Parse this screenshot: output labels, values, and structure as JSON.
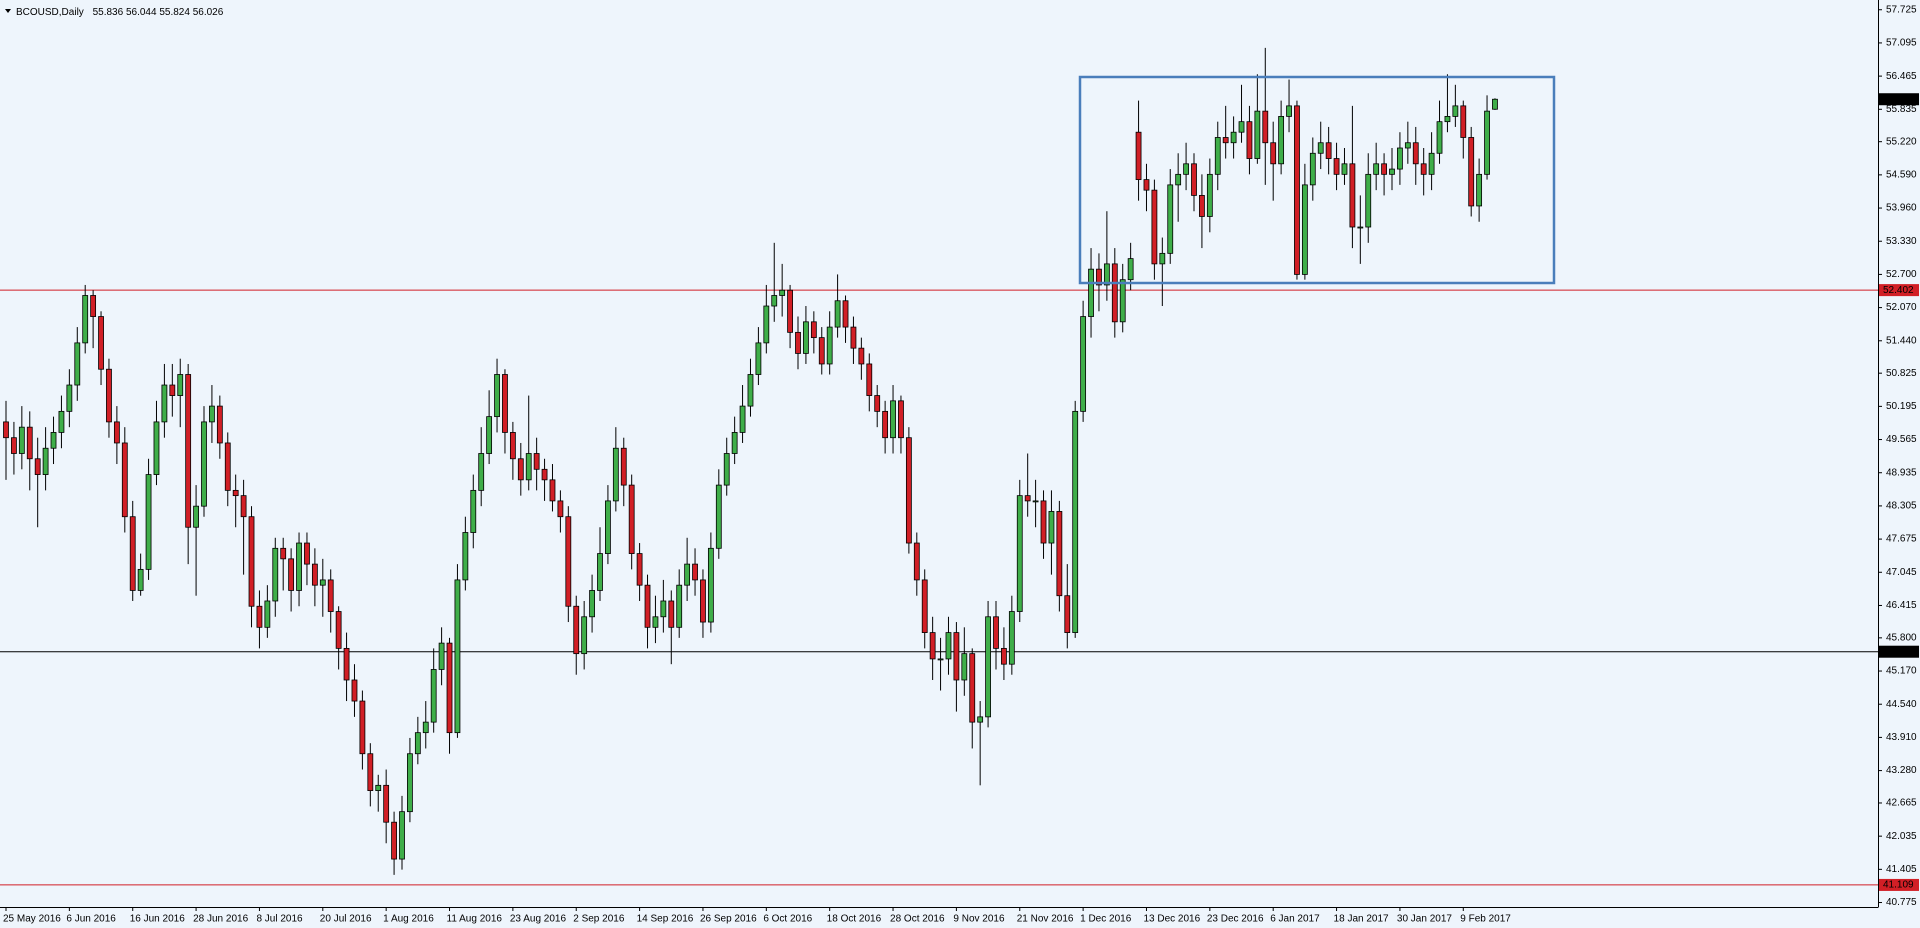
{
  "chart_data": {
    "type": "candlestick",
    "title": "BCOUSD,Daily",
    "categories": [
      "25 May 2016",
      null,
      null,
      null,
      null,
      null,
      null,
      null,
      "6 Jun 2016",
      null,
      null,
      null,
      null,
      null,
      null,
      null,
      "16 Jun 2016",
      null,
      null,
      null,
      null,
      null,
      null,
      null,
      "28 Jun 2016",
      null,
      null,
      null,
      null,
      null,
      null,
      null,
      "8 Jul 2016",
      null,
      null,
      null,
      null,
      null,
      null,
      null,
      "20 Jul 2016",
      null,
      null,
      null,
      null,
      null,
      null,
      null,
      "1 Aug 2016",
      null,
      null,
      null,
      null,
      null,
      null,
      null,
      "11 Aug 2016",
      null,
      null,
      null,
      null,
      null,
      null,
      null,
      "23 Aug 2016",
      null,
      null,
      null,
      null,
      null,
      null,
      null,
      "2 Sep 2016",
      null,
      null,
      null,
      null,
      null,
      null,
      null,
      "14 Sep 2016",
      null,
      null,
      null,
      null,
      null,
      null,
      null,
      "26 Sep 2016",
      null,
      null,
      null,
      null,
      null,
      null,
      null,
      "6 Oct 2016",
      null,
      null,
      null,
      null,
      null,
      null,
      null,
      "18 Oct 2016",
      null,
      null,
      null,
      null,
      null,
      null,
      null,
      "28 Oct 2016",
      null,
      null,
      null,
      null,
      null,
      null,
      null,
      "9 Nov 2016",
      null,
      null,
      null,
      null,
      null,
      null,
      null,
      "21 Nov 2016",
      null,
      null,
      null,
      null,
      null,
      null,
      null,
      "1 Dec 2016",
      null,
      null,
      null,
      null,
      null,
      null,
      null,
      "13 Dec 2016",
      null,
      null,
      null,
      null,
      null,
      null,
      null,
      "23 Dec 2016",
      null,
      null,
      null,
      null,
      null,
      null,
      null,
      "6 Jan 2017",
      null,
      null,
      null,
      null,
      null,
      null,
      null,
      "18 Jan 2017",
      null,
      null,
      null,
      null,
      null,
      null,
      null,
      "30 Jan 2017",
      null,
      null,
      null,
      null,
      null,
      null,
      null,
      "9 Feb 2017",
      null,
      null,
      null,
      null
    ],
    "open": [
      49.9,
      49.6,
      49.3,
      49.8,
      49.2,
      48.9,
      49.4,
      49.7,
      50.1,
      50.6,
      51.4,
      52.3,
      51.9,
      50.9,
      49.9,
      49.5,
      48.1,
      46.7,
      47.1,
      48.9,
      49.9,
      50.6,
      50.4,
      50.8,
      47.9,
      48.3,
      49.9,
      50.2,
      49.5,
      48.6,
      48.5,
      48.1,
      46.4,
      46.0,
      46.5,
      47.5,
      47.3,
      46.7,
      47.6,
      47.2,
      46.8,
      46.9,
      46.3,
      45.6,
      45.0,
      44.6,
      43.6,
      42.9,
      43.0,
      42.3,
      41.6,
      42.5,
      43.6,
      44.0,
      44.2,
      45.2,
      45.7,
      44.0,
      46.9,
      47.8,
      48.6,
      49.3,
      50.0,
      50.8,
      49.7,
      49.2,
      48.8,
      49.3,
      49.0,
      48.8,
      48.4,
      48.1,
      46.4,
      45.5,
      46.2,
      46.7,
      47.4,
      48.4,
      49.4,
      48.7,
      47.4,
      46.8,
      46.0,
      46.2,
      46.5,
      46.0,
      46.8,
      47.2,
      46.9,
      46.1,
      47.5,
      48.7,
      49.3,
      49.7,
      50.2,
      50.8,
      51.4,
      52.1,
      52.3,
      52.4,
      51.6,
      51.2,
      51.8,
      51.5,
      51.0,
      51.7,
      52.2,
      51.7,
      51.3,
      51.0,
      50.4,
      50.1,
      49.6,
      50.3,
      49.6,
      47.6,
      46.9,
      45.9,
      45.4,
      45.4,
      45.9,
      45.0,
      45.5,
      44.2,
      44.3,
      46.2,
      45.6,
      45.3,
      46.3,
      48.5,
      48.4,
      48.4,
      47.6,
      48.2,
      46.6,
      45.9,
      50.1,
      51.9,
      52.8,
      52.5,
      52.9,
      51.8,
      52.6,
      55.4,
      54.5,
      54.3,
      52.9,
      53.1,
      54.4,
      54.6,
      54.8,
      54.2,
      53.8,
      54.6,
      55.3,
      55.2,
      55.4,
      55.6,
      54.9,
      55.8,
      55.2,
      54.8,
      55.7,
      55.9,
      52.7,
      54.4,
      55.0,
      55.2,
      54.9,
      54.6,
      54.8,
      53.6,
      53.6,
      54.6,
      54.8,
      54.6,
      54.7,
      55.1,
      55.2,
      54.8,
      54.6,
      55.0,
      55.6,
      55.7,
      55.9,
      55.3,
      54.0,
      54.6,
      55.836
    ],
    "high": [
      50.3,
      49.9,
      50.2,
      50.1,
      49.6,
      49.8,
      50.0,
      50.4,
      50.9,
      51.7,
      52.5,
      52.4,
      52.0,
      51.1,
      50.2,
      49.8,
      48.4,
      47.4,
      49.2,
      50.3,
      51.0,
      51.0,
      51.1,
      51.0,
      48.7,
      50.2,
      50.6,
      50.4,
      49.7,
      48.9,
      48.8,
      48.3,
      46.7,
      46.8,
      47.7,
      47.7,
      47.5,
      47.8,
      47.8,
      47.5,
      47.3,
      47.1,
      46.4,
      45.9,
      45.3,
      44.8,
      43.8,
      43.2,
      43.3,
      42.5,
      42.8,
      43.9,
      44.3,
      44.6,
      45.6,
      46.0,
      45.8,
      47.2,
      48.1,
      48.9,
      49.8,
      50.5,
      51.1,
      50.9,
      49.9,
      49.5,
      50.4,
      49.6,
      49.2,
      49.1,
      48.6,
      48.3,
      46.6,
      46.5,
      47.0,
      47.9,
      48.7,
      49.8,
      49.6,
      48.9,
      47.6,
      47.0,
      46.6,
      46.9,
      46.7,
      47.1,
      47.7,
      47.5,
      47.1,
      47.8,
      49.0,
      49.6,
      50.0,
      50.6,
      51.1,
      51.7,
      52.5,
      53.3,
      52.9,
      52.5,
      51.9,
      52.1,
      52.0,
      51.7,
      52.0,
      52.7,
      52.3,
      51.9,
      51.5,
      51.2,
      50.6,
      50.3,
      50.6,
      50.4,
      49.8,
      47.8,
      47.1,
      46.2,
      45.8,
      46.2,
      46.1,
      46.0,
      45.6,
      44.6,
      46.5,
      46.5,
      46.0,
      46.6,
      48.8,
      49.3,
      48.8,
      48.6,
      48.6,
      48.4,
      47.2,
      50.3,
      52.2,
      53.2,
      53.1,
      53.9,
      53.2,
      52.9,
      53.3,
      56.0,
      54.8,
      54.5,
      53.4,
      54.7,
      55.0,
      55.2,
      55.0,
      54.6,
      54.9,
      55.6,
      55.9,
      55.7,
      56.3,
      55.9,
      56.5,
      57.0,
      55.6,
      56.0,
      56.4,
      56.0,
      54.8,
      55.3,
      55.6,
      55.5,
      55.2,
      55.1,
      55.9,
      54.2,
      55.0,
      55.2,
      55.0,
      55.1,
      55.4,
      55.6,
      55.5,
      55.1,
      55.4,
      56.0,
      56.5,
      56.3,
      56.0,
      55.5,
      54.9,
      56.1,
      56.044
    ],
    "low": [
      48.8,
      48.9,
      49.0,
      48.6,
      47.9,
      48.6,
      49.1,
      49.4,
      49.8,
      50.3,
      51.2,
      51.3,
      50.6,
      49.6,
      49.1,
      47.8,
      46.5,
      46.6,
      46.9,
      48.7,
      49.6,
      50.0,
      49.8,
      47.2,
      46.6,
      48.1,
      49.5,
      49.2,
      48.3,
      47.9,
      47.0,
      46.0,
      45.6,
      45.8,
      46.2,
      46.7,
      46.3,
      46.4,
      46.8,
      46.4,
      46.2,
      45.9,
      45.2,
      44.6,
      44.3,
      43.3,
      42.6,
      42.5,
      41.9,
      41.3,
      41.4,
      42.3,
      43.4,
      43.7,
      44.0,
      44.9,
      43.6,
      43.9,
      46.7,
      47.5,
      48.3,
      49.1,
      49.7,
      49.3,
      48.8,
      48.5,
      48.6,
      48.6,
      48.4,
      48.2,
      47.8,
      46.1,
      45.1,
      45.2,
      45.9,
      46.5,
      47.2,
      48.2,
      48.3,
      47.1,
      46.5,
      45.6,
      45.7,
      45.9,
      45.3,
      45.8,
      46.5,
      46.6,
      45.8,
      45.9,
      47.3,
      48.5,
      49.1,
      49.5,
      50.0,
      50.6,
      51.2,
      51.8,
      51.9,
      51.3,
      50.9,
      51.0,
      51.2,
      50.8,
      50.8,
      51.5,
      51.4,
      51.0,
      50.7,
      50.1,
      49.8,
      49.3,
      49.3,
      49.3,
      47.4,
      46.6,
      45.6,
      45.0,
      44.8,
      45.1,
      44.4,
      44.7,
      43.7,
      43.0,
      44.1,
      45.2,
      45.0,
      45.1,
      46.1,
      48.1,
      47.9,
      47.3,
      47.0,
      46.3,
      45.6,
      45.8,
      49.9,
      51.5,
      52.0,
      52.2,
      51.5,
      51.6,
      52.4,
      54.1,
      53.9,
      52.6,
      52.1,
      52.9,
      53.7,
      54.3,
      53.9,
      53.2,
      53.5,
      54.3,
      54.9,
      54.9,
      55.2,
      54.6,
      54.8,
      54.4,
      54.1,
      54.6,
      55.4,
      52.6,
      52.6,
      54.1,
      54.7,
      54.6,
      54.3,
      54.4,
      53.2,
      52.9,
      53.3,
      54.3,
      54.2,
      54.3,
      54.4,
      54.8,
      54.4,
      54.2,
      54.3,
      54.8,
      55.4,
      55.5,
      54.9,
      53.8,
      53.7,
      54.5,
      55.824
    ],
    "close": [
      49.6,
      49.3,
      49.8,
      49.2,
      48.9,
      49.4,
      49.7,
      50.1,
      50.6,
      51.4,
      52.3,
      51.9,
      50.9,
      49.9,
      49.5,
      48.1,
      46.7,
      47.1,
      48.9,
      49.9,
      50.6,
      50.4,
      50.8,
      47.9,
      48.3,
      49.9,
      50.2,
      49.5,
      48.6,
      48.5,
      48.1,
      46.4,
      46.0,
      46.5,
      47.5,
      47.3,
      46.7,
      47.6,
      47.2,
      46.8,
      46.9,
      46.3,
      45.6,
      45.0,
      44.6,
      43.6,
      42.9,
      43.0,
      42.3,
      41.6,
      42.5,
      43.6,
      44.0,
      44.2,
      45.2,
      45.7,
      44.0,
      46.9,
      47.8,
      48.6,
      49.3,
      50.0,
      50.8,
      49.7,
      49.2,
      48.8,
      49.3,
      49.0,
      48.8,
      48.4,
      48.1,
      46.4,
      45.5,
      46.2,
      46.7,
      47.4,
      48.4,
      49.4,
      48.7,
      47.4,
      46.8,
      46.0,
      46.2,
      46.5,
      46.0,
      46.8,
      47.2,
      46.9,
      46.1,
      47.5,
      48.7,
      49.3,
      49.7,
      50.2,
      50.8,
      51.4,
      52.1,
      52.3,
      52.4,
      51.6,
      51.2,
      51.8,
      51.5,
      51.0,
      51.7,
      52.2,
      51.7,
      51.3,
      51.0,
      50.4,
      50.1,
      49.6,
      50.3,
      49.6,
      47.6,
      46.9,
      45.9,
      45.4,
      45.4,
      45.9,
      45.0,
      45.5,
      44.2,
      44.3,
      46.2,
      45.6,
      45.3,
      46.3,
      48.5,
      48.4,
      48.4,
      47.6,
      48.2,
      46.6,
      45.9,
      50.1,
      51.9,
      52.8,
      52.5,
      52.9,
      51.8,
      52.6,
      53.0,
      54.5,
      54.3,
      52.9,
      53.1,
      54.4,
      54.6,
      54.8,
      54.2,
      53.8,
      54.6,
      55.3,
      55.2,
      55.4,
      55.6,
      54.9,
      55.8,
      55.2,
      54.8,
      55.7,
      55.9,
      52.7,
      54.4,
      55.0,
      55.2,
      54.9,
      54.6,
      54.8,
      53.6,
      53.6,
      54.6,
      54.8,
      54.6,
      54.7,
      55.1,
      55.2,
      54.8,
      54.6,
      55.0,
      55.6,
      55.7,
      55.9,
      55.3,
      54.0,
      54.6,
      55.8,
      56.026
    ],
    "up_color": "#3fae49",
    "down_color": "#d11f26",
    "ylim": [
      40.69,
      57.91
    ],
    "yticks": [
      57.725,
      57.095,
      56.465,
      55.835,
      {
        "value": 55.22,
        "label": "55.220"
      },
      {
        "value": 54.59,
        "label": "54.590"
      },
      {
        "value": 53.96,
        "label": "53.960"
      },
      {
        "value": 53.33,
        "label": "53.330"
      },
      {
        "value": 52.7,
        "label": "52.700"
      },
      {
        "value": 52.07,
        "label": "52.070"
      },
      {
        "value": 51.44,
        "label": "51.440"
      },
      50.825,
      50.195,
      49.565,
      48.935,
      48.305,
      47.675,
      47.045,
      46.415,
      {
        "value": 45.8,
        "label": "45.800"
      },
      {
        "value": 45.17,
        "label": "45.170"
      },
      {
        "value": 44.54,
        "label": "44.540"
      },
      {
        "value": 43.91,
        "label": "43.910"
      },
      {
        "value": 43.28,
        "label": "43.280"
      },
      42.665,
      42.035,
      41.405,
      40.775
    ],
    "hlines": [
      {
        "value": 52.402,
        "color": "#d11f26"
      },
      {
        "value": 45.537,
        "color": "#000000"
      },
      {
        "value": 41.109,
        "color": "#d11f26"
      }
    ],
    "grid": false
  }
}
